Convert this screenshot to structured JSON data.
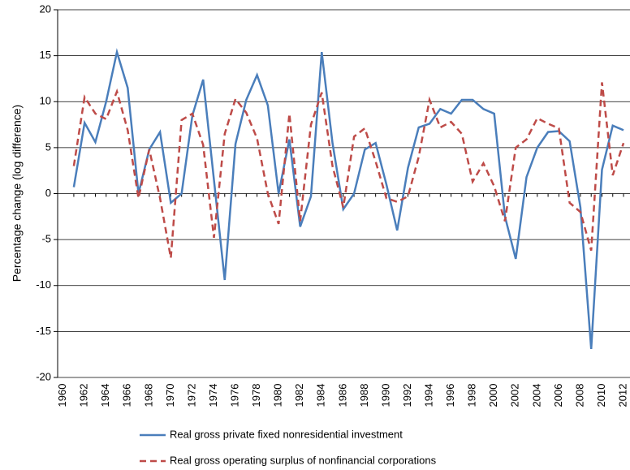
{
  "chart_data": {
    "type": "line",
    "ylabel": "Percentage change (log difference)",
    "x": [
      1961,
      1962,
      1963,
      1964,
      1965,
      1966,
      1967,
      1968,
      1969,
      1970,
      1971,
      1972,
      1973,
      1974,
      1975,
      1976,
      1977,
      1978,
      1979,
      1980,
      1981,
      1982,
      1983,
      1984,
      1985,
      1986,
      1987,
      1988,
      1989,
      1990,
      1991,
      1992,
      1993,
      1994,
      1995,
      1996,
      1997,
      1998,
      1999,
      2000,
      2001,
      2002,
      2003,
      2004,
      2005,
      2006,
      2007,
      2008,
      2009,
      2010,
      2011,
      2012
    ],
    "series": [
      {
        "name": "Real gross private fixed nonresidential investment",
        "color": "#4a7ebb",
        "dash": false,
        "values": [
          0.7,
          7.7,
          5.6,
          10,
          15.4,
          11.5,
          0,
          4.8,
          6.7,
          -1,
          0,
          8.5,
          12.4,
          1.5,
          -9.4,
          5.4,
          10.2,
          12.9,
          9.6,
          0,
          5.9,
          -3.6,
          -0.3,
          15.4,
          5.5,
          -1.7,
          0,
          4.8,
          5.5,
          1,
          -4,
          2.8,
          7.2,
          7.6,
          9.2,
          8.7,
          10.2,
          10.2,
          9.2,
          8.7,
          -2.5,
          -7.1,
          1.8,
          5,
          6.7,
          6.8,
          5.7,
          -1.5,
          -16.9,
          2.6,
          7.4,
          6.9
        ]
      },
      {
        "name": "Real gross operating surplus of nonfinancial corporations",
        "color": "#be4b48",
        "dash": true,
        "values": [
          3,
          10.5,
          8.7,
          8.1,
          11.1,
          6.9,
          -0.5,
          4.8,
          -0.5,
          -7,
          8,
          8.7,
          5.3,
          -4.8,
          6.5,
          10.3,
          8.8,
          6,
          0,
          -3.3,
          8.7,
          -3,
          7.5,
          11,
          3,
          -1.5,
          6.2,
          7.1,
          3.5,
          -0.5,
          -0.9,
          -0.3,
          4,
          10.2,
          7.2,
          7.8,
          6.5,
          1.3,
          3.3,
          0.8,
          -3,
          5,
          5.9,
          8.2,
          7.6,
          7.1,
          -1,
          -2,
          -6.2,
          12.1,
          2,
          5.5
        ]
      }
    ],
    "xlim": [
      1959.5,
      2012.6
    ],
    "xticks": [
      1960,
      1962,
      1964,
      1966,
      1968,
      1970,
      1972,
      1974,
      1976,
      1978,
      1980,
      1982,
      1984,
      1986,
      1988,
      1990,
      1992,
      1994,
      1996,
      1998,
      2000,
      2002,
      2004,
      2006,
      2008,
      2010,
      2012
    ],
    "ylim": [
      -20,
      20
    ],
    "yticks": [
      -20,
      -15,
      -10,
      -5,
      0,
      5,
      10,
      15,
      20
    ],
    "grid": true,
    "legend": "bottom"
  }
}
